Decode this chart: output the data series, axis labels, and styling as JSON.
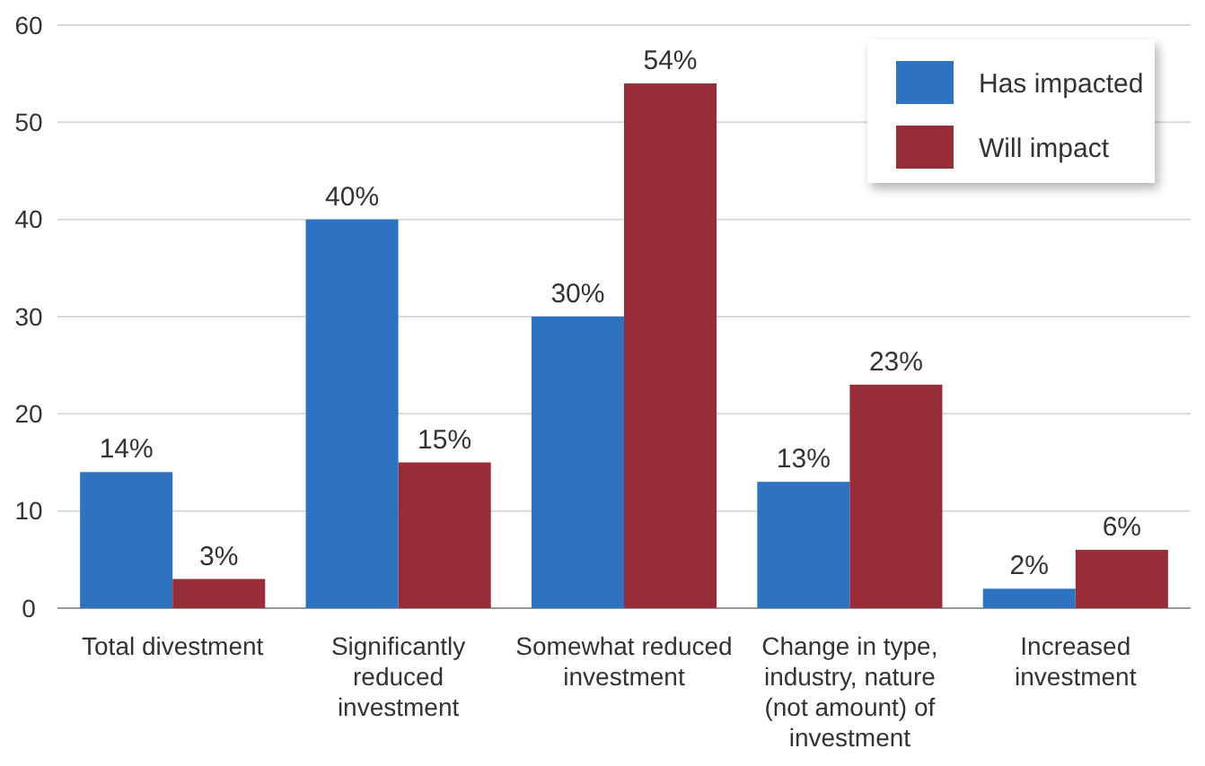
{
  "chart_data": {
    "type": "bar",
    "categories": [
      "Total divestment",
      "Significantly reduced investment",
      "Somewhat reduced investment",
      "Change in type, industry, nature (not amount) of investment",
      "Increased investment"
    ],
    "series": [
      {
        "name": "Has impacted",
        "color": "#2e73c1",
        "values": [
          14,
          40,
          30,
          13,
          2
        ],
        "value_labels": [
          "14%",
          "40%",
          "30%",
          "13%",
          "2%"
        ]
      },
      {
        "name": "Will impact",
        "color": "#962d38",
        "values": [
          3,
          15,
          54,
          23,
          6
        ],
        "value_labels": [
          "3%",
          "15%",
          "54%",
          "23%",
          "6%"
        ]
      }
    ],
    "ylim": [
      0,
      60
    ],
    "yticks": [
      0,
      10,
      20,
      30,
      40,
      50,
      60
    ],
    "grid": "y",
    "legend": "top right"
  }
}
